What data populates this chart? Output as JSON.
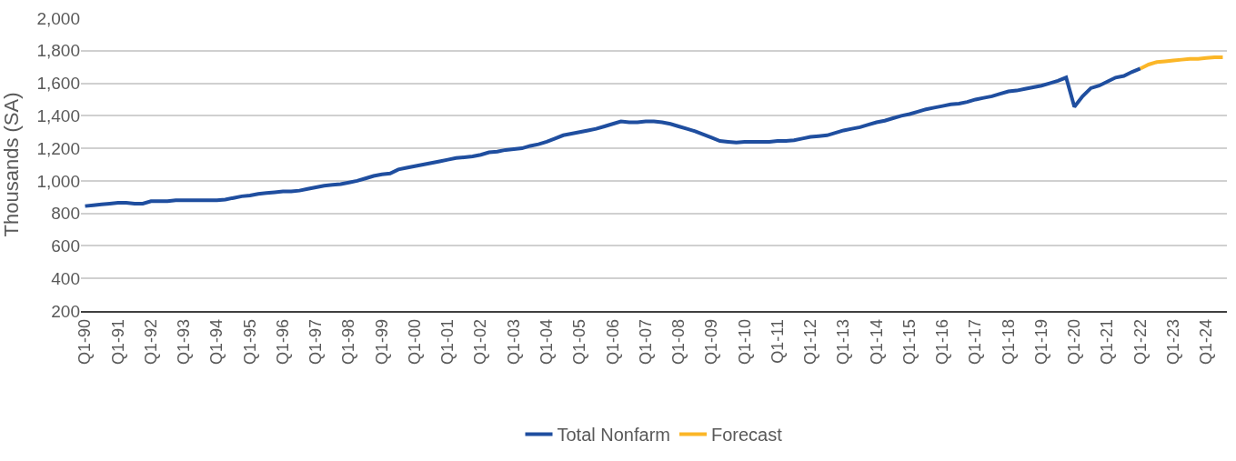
{
  "chart_data": {
    "type": "line",
    "ylabel": "Thousands (SA)",
    "categories": [
      "Q1-90",
      null,
      null,
      null,
      "Q1-91",
      null,
      null,
      null,
      "Q1-92",
      null,
      null,
      null,
      "Q1-93",
      null,
      null,
      null,
      "Q1-94",
      null,
      null,
      null,
      "Q1-95",
      null,
      null,
      null,
      "Q1-96",
      null,
      null,
      null,
      "Q1-97",
      null,
      null,
      null,
      "Q1-98",
      null,
      null,
      null,
      "Q1-99",
      null,
      null,
      null,
      "Q1-00",
      null,
      null,
      null,
      "Q1-01",
      null,
      null,
      null,
      "Q1-02",
      null,
      null,
      null,
      "Q1-03",
      null,
      null,
      null,
      "Q1-04",
      null,
      null,
      null,
      "Q1-05",
      null,
      null,
      null,
      "Q1-06",
      null,
      null,
      null,
      "Q1-07",
      null,
      null,
      null,
      "Q1-08",
      null,
      null,
      null,
      "Q1-09",
      null,
      null,
      null,
      "Q1-10",
      null,
      null,
      null,
      "Q1-11",
      null,
      null,
      null,
      "Q1-12",
      null,
      null,
      null,
      "Q1-13",
      null,
      null,
      null,
      "Q1-14",
      null,
      null,
      null,
      "Q1-15",
      null,
      null,
      null,
      "Q1-16",
      null,
      null,
      null,
      "Q1-17",
      null,
      null,
      null,
      "Q1-18",
      null,
      null,
      null,
      "Q1-19",
      null,
      null,
      null,
      "Q1-20",
      null,
      null,
      null,
      "Q1-21",
      null,
      null,
      null,
      "Q1-22",
      null,
      null,
      null,
      "Q1-23",
      null,
      null,
      null,
      "Q1-24",
      null,
      null
    ],
    "series": [
      {
        "name": "Total Nonfarm",
        "color": "#1f4e9f",
        "values": [
          845,
          850,
          855,
          860,
          865,
          865,
          860,
          860,
          875,
          875,
          875,
          880,
          880,
          880,
          880,
          880,
          880,
          885,
          895,
          905,
          910,
          920,
          925,
          930,
          935,
          935,
          940,
          950,
          960,
          970,
          975,
          980,
          990,
          1000,
          1015,
          1030,
          1040,
          1045,
          1070,
          1080,
          1090,
          1100,
          1110,
          1120,
          1130,
          1140,
          1145,
          1150,
          1160,
          1175,
          1180,
          1190,
          1195,
          1200,
          1215,
          1225,
          1240,
          1260,
          1280,
          1290,
          1300,
          1310,
          1320,
          1335,
          1350,
          1365,
          1360,
          1360,
          1365,
          1365,
          1360,
          1350,
          1335,
          1320,
          1305,
          1285,
          1265,
          1245,
          1240,
          1235,
          1240,
          1240,
          1240,
          1240,
          1245,
          1245,
          1250,
          1260,
          1270,
          1275,
          1280,
          1295,
          1310,
          1320,
          1330,
          1345,
          1360,
          1370,
          1385,
          1400,
          1410,
          1425,
          1440,
          1450,
          1460,
          1470,
          1475,
          1485,
          1500,
          1510,
          1520,
          1535,
          1550,
          1555,
          1565,
          1575,
          1585,
          1600,
          1615,
          1635,
          1455,
          1520,
          1570,
          1585,
          1610,
          1635,
          1645,
          1670,
          1690,
          null,
          null,
          null,
          null,
          null,
          null,
          null,
          null,
          null,
          null
        ]
      },
      {
        "name": "Forecast",
        "color": "#fbb627",
        "values": [
          null,
          null,
          null,
          null,
          null,
          null,
          null,
          null,
          null,
          null,
          null,
          null,
          null,
          null,
          null,
          null,
          null,
          null,
          null,
          null,
          null,
          null,
          null,
          null,
          null,
          null,
          null,
          null,
          null,
          null,
          null,
          null,
          null,
          null,
          null,
          null,
          null,
          null,
          null,
          null,
          null,
          null,
          null,
          null,
          null,
          null,
          null,
          null,
          null,
          null,
          null,
          null,
          null,
          null,
          null,
          null,
          null,
          null,
          null,
          null,
          null,
          null,
          null,
          null,
          null,
          null,
          null,
          null,
          null,
          null,
          null,
          null,
          null,
          null,
          null,
          null,
          null,
          null,
          null,
          null,
          null,
          null,
          null,
          null,
          null,
          null,
          null,
          null,
          null,
          null,
          null,
          null,
          null,
          null,
          null,
          null,
          null,
          null,
          null,
          null,
          null,
          null,
          null,
          null,
          null,
          null,
          null,
          null,
          null,
          null,
          null,
          null,
          null,
          null,
          null,
          null,
          null,
          null,
          null,
          null,
          null,
          null,
          null,
          null,
          null,
          null,
          null,
          null,
          1690,
          1715,
          1730,
          1735,
          1740,
          1745,
          1750,
          1750,
          1755,
          1760,
          1760
        ]
      }
    ],
    "ylim": [
      200,
      2000
    ],
    "yticks": [
      200,
      400,
      600,
      800,
      {
        "value": 1000,
        "label": "1,000"
      },
      {
        "value": 1200,
        "label": "1,200"
      },
      {
        "value": 1400,
        "label": "1,400"
      },
      {
        "value": 1600,
        "label": "1,600"
      },
      {
        "value": 1800,
        "label": "1,800"
      },
      {
        "value": 2000,
        "label": "2,000"
      }
    ],
    "grid": "y",
    "legend": "bottom",
    "marker": "none",
    "line_style": "solid"
  }
}
